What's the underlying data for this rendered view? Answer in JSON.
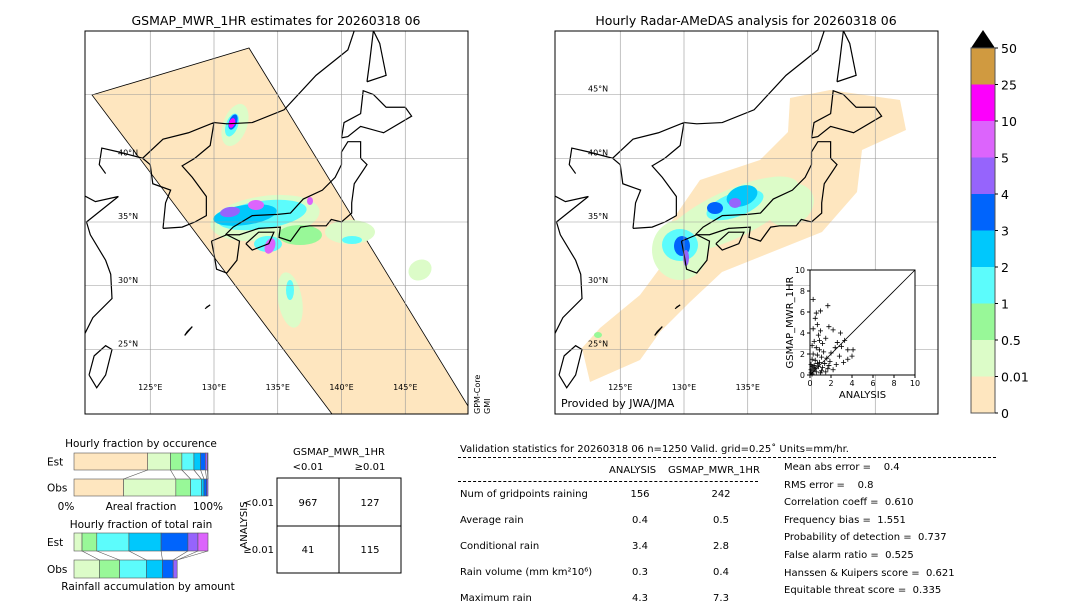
{
  "left_map": {
    "title": "GSMAP_MWR_1HR estimates for 20260318 06",
    "lat_labels": [
      "40°N",
      "35°N",
      "30°N",
      "25°N"
    ],
    "lon_labels": [
      "125°E",
      "130°E",
      "135°E",
      "140°E",
      "145°E"
    ],
    "sensor_label": "GPM-Core\nGMI",
    "sensor_line1": "GPM-Core",
    "sensor_line2": "GMI"
  },
  "right_map": {
    "title": "Hourly Radar-AMeDAS analysis for 20260318 06",
    "lat_labels": [
      "45°N",
      "40°N",
      "35°N",
      "30°N",
      "25°N"
    ],
    "lon_labels": [
      "125°E",
      "130°E",
      "135°E"
    ],
    "credit": "Provided by JWA/JMA"
  },
  "colorbar": {
    "ticks": [
      "0",
      "0.01",
      "0.5",
      "1",
      "2",
      "3",
      "4",
      "5",
      "10",
      "25",
      "50"
    ],
    "colors": [
      "#fee6bf",
      "#dcfcc8",
      "#98f898",
      "#5cfcfc",
      "#00c8fc",
      "#0064fc",
      "#9664fc",
      "#dc64fc",
      "#fc00fc",
      "#d09a40"
    ],
    "extend": "max",
    "units": "mm/hr"
  },
  "chart_data": [
    {
      "type": "scatter",
      "xlabel": "ANALYSIS",
      "ylabel": "GSMAP_MWR_1HR",
      "xlim": [
        0,
        10
      ],
      "ylim": [
        0,
        10
      ],
      "xticks": [
        "0",
        "2",
        "4",
        "6",
        "8",
        "10"
      ],
      "yticks": [
        "0",
        "2",
        "4",
        "6",
        "8",
        "10"
      ],
      "diagonal": true,
      "marker": "+",
      "points": [
        [
          0.3,
          7.2
        ],
        [
          0.6,
          5.9
        ],
        [
          1.0,
          6.1
        ],
        [
          1.7,
          6.6
        ],
        [
          0.5,
          5.4
        ],
        [
          0.7,
          4.8
        ],
        [
          0.3,
          4.4
        ],
        [
          1.0,
          4.2
        ],
        [
          1.8,
          4.6
        ],
        [
          2.2,
          4.3
        ],
        [
          2.9,
          4.0
        ],
        [
          3.3,
          3.3
        ],
        [
          3.0,
          2.7
        ],
        [
          3.6,
          2.4
        ],
        [
          4.1,
          2.4
        ],
        [
          4.0,
          1.8
        ],
        [
          3.6,
          1.5
        ],
        [
          2.5,
          1.0
        ],
        [
          2.0,
          2.1
        ],
        [
          1.5,
          3.5
        ],
        [
          1.2,
          3.0
        ],
        [
          0.8,
          3.8
        ],
        [
          0.4,
          3.2
        ],
        [
          0.2,
          2.8
        ],
        [
          0.6,
          2.6
        ],
        [
          0.9,
          2.4
        ],
        [
          1.3,
          2.2
        ],
        [
          0.3,
          2.0
        ],
        [
          0.7,
          1.9
        ],
        [
          1.1,
          1.7
        ],
        [
          1.6,
          1.6
        ],
        [
          0.2,
          1.5
        ],
        [
          0.5,
          1.4
        ],
        [
          0.9,
          1.2
        ],
        [
          1.4,
          1.1
        ],
        [
          1.9,
          1.3
        ],
        [
          0.1,
          1.0
        ],
        [
          0.4,
          0.9
        ],
        [
          0.8,
          0.8
        ],
        [
          1.2,
          0.7
        ],
        [
          1.7,
          0.6
        ],
        [
          2.2,
          0.5
        ],
        [
          0.1,
          0.5
        ],
        [
          0.3,
          0.4
        ],
        [
          0.6,
          0.3
        ],
        [
          1.0,
          0.2
        ],
        [
          1.5,
          0.3
        ],
        [
          0.2,
          0.1
        ],
        [
          0.5,
          0.6
        ],
        [
          0.1,
          0.2
        ],
        [
          2.8,
          1.8
        ],
        [
          3.2,
          1.2
        ],
        [
          2.4,
          2.6
        ],
        [
          0.4,
          0.7
        ],
        [
          0.7,
          1.1
        ],
        [
          1.1,
          0.4
        ],
        [
          0.2,
          0.8
        ],
        [
          1.8,
          0.9
        ],
        [
          2.6,
          3.1
        ],
        [
          0.9,
          3.3
        ]
      ]
    },
    {
      "type": "bar",
      "title": "Hourly fraction by occurence",
      "xlabel": "Areal fraction",
      "x_min_label": "0%",
      "x_max_label": "100%",
      "categories": [
        "Est",
        "Obs"
      ],
      "bins": [
        "0-0.01",
        "0.01-0.5",
        "0.5-1",
        "1-2",
        "2-3",
        "3-4",
        "4-5",
        "5-10"
      ],
      "series": [
        {
          "name": "Est",
          "values": [
            0.55,
            0.17,
            0.085,
            0.09,
            0.05,
            0.035,
            0.015,
            0.005
          ]
        },
        {
          "name": "Obs",
          "values": [
            0.37,
            0.39,
            0.11,
            0.08,
            0.02,
            0.02,
            0.01,
            0.0
          ]
        }
      ]
    },
    {
      "type": "bar",
      "title": "Hourly fraction of total rain",
      "xlabel": "Rainfall accumulation by amount",
      "categories": [
        "Est",
        "Obs"
      ],
      "bins": [
        "0.01-0.5",
        "0.5-1",
        "1-2",
        "2-3",
        "3-4",
        "4-5",
        "5-10"
      ],
      "series": [
        {
          "name": "Est",
          "values": [
            0.06,
            0.11,
            0.24,
            0.24,
            0.2,
            0.075,
            0.075
          ]
        },
        {
          "name": "Obs",
          "values": [
            0.19,
            0.15,
            0.2,
            0.12,
            0.08,
            0.03,
            0.0
          ]
        }
      ]
    },
    {
      "type": "table",
      "title": "GSMAP_MWR_1HR",
      "col_labels": [
        "<0.01",
        "≥0.01"
      ],
      "row_axis": "ANALYSIS",
      "row_labels": [
        "<0.01",
        "≥0.01"
      ],
      "cells": [
        [
          "967",
          "127"
        ],
        [
          "41",
          "115"
        ]
      ]
    }
  ],
  "stats": {
    "header": "Validation statistics for 20260318 06  n=1250 Valid. grid=0.25˚ Units=mm/hr.",
    "col1": "ANALYSIS",
    "col2": "GSMAP_MWR_1HR",
    "rows": [
      {
        "label": "Num of gridpoints raining",
        "a": "156",
        "b": "242"
      },
      {
        "label": "Average rain",
        "a": "0.4",
        "b": "0.5"
      },
      {
        "label": "Conditional rain",
        "a": "3.4",
        "b": "2.8"
      },
      {
        "label": "Rain volume (mm km²10⁶)",
        "a": "0.3",
        "b": "0.4"
      },
      {
        "label": "Maximum rain",
        "a": "4.3",
        "b": "7.3"
      }
    ],
    "scores": [
      "Mean abs error =    0.4",
      "RMS error =    0.8",
      "Correlation coeff =  0.610",
      "Frequency bias =  1.551",
      "Probability of detection =  0.737",
      "False alarm ratio =  0.525",
      "Hanssen & Kuipers score =  0.621",
      "Equitable threat score =  0.335"
    ]
  }
}
